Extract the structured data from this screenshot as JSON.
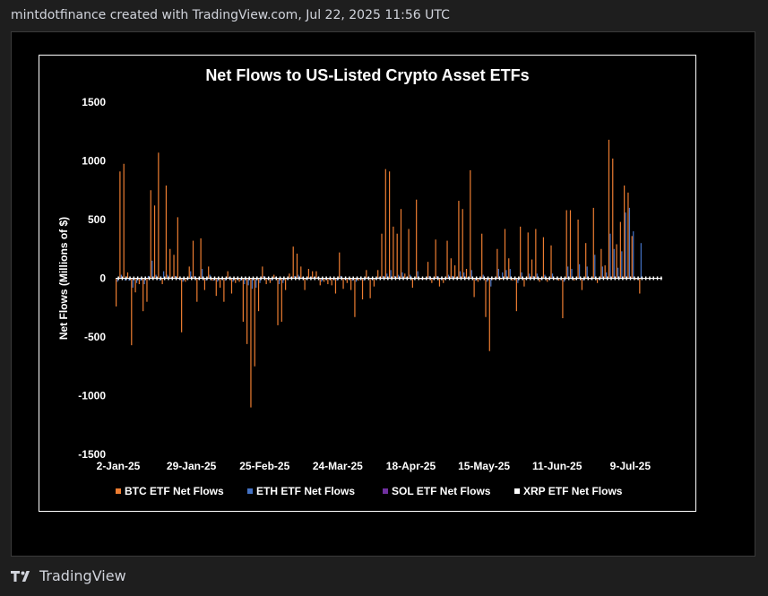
{
  "header": {
    "attribution": "mintdotfinance created with TradingView.com, Jul 22, 2025 11:56 UTC"
  },
  "footer": {
    "brand": "TradingView",
    "logo_icon": "tradingview-logo-icon"
  },
  "colors": {
    "btc": "#ed7d31",
    "eth": "#4472c4",
    "sol": "#7030a0",
    "xrp": "#ffffff",
    "background": "#000000",
    "text": "#ffffff"
  },
  "chart_data": {
    "type": "bar",
    "title": "Net Flows to US-Listed Crypto Asset ETFs",
    "xlabel": "",
    "ylabel": "Net Flows (Millions of $)",
    "ylim": [
      -1500,
      1500
    ],
    "yticks": [
      1500,
      1000,
      500,
      0,
      -500,
      -1000,
      -1500
    ],
    "ytick_labels": [
      "1500",
      "1000",
      "500",
      "0",
      "-500",
      "-1000",
      "-1500"
    ],
    "xtick_labels": [
      "2-Jan-25",
      "29-Jan-25",
      "25-Feb-25",
      "24-Mar-25",
      "18-Apr-25",
      "15-May-25",
      "11-Jun-25",
      "9-Jul-25"
    ],
    "xtick_days": [
      0,
      19,
      38,
      57,
      76,
      95,
      114,
      133
    ],
    "legend_position": "bottom",
    "legend": [
      "BTC ETF Net Flows",
      "ETH ETF Net Flows",
      "SOL ETF Net Flows",
      "XRP ETF Net Flows"
    ],
    "days": 142,
    "series": [
      {
        "name": "BTC ETF Net Flows",
        "color": "#ed7d31",
        "values": [
          -240,
          910,
          975,
          50,
          -570,
          -120,
          -50,
          -280,
          -200,
          750,
          620,
          1070,
          -50,
          790,
          250,
          200,
          520,
          -460,
          -30,
          100,
          320,
          -200,
          340,
          -100,
          100,
          -20,
          -150,
          -80,
          -200,
          60,
          -130,
          -40,
          -30,
          -370,
          -560,
          -1100,
          -750,
          -280,
          100,
          -50,
          -40,
          30,
          -400,
          -370,
          -100,
          40,
          270,
          210,
          100,
          -100,
          80,
          60,
          60,
          -60,
          -30,
          -50,
          -60,
          -130,
          220,
          -90,
          -40,
          -100,
          -330,
          -20,
          -180,
          70,
          -170,
          -70,
          70,
          380,
          930,
          910,
          440,
          380,
          590,
          40,
          420,
          -80,
          670,
          -10,
          -10,
          140,
          -40,
          330,
          -70,
          -40,
          320,
          170,
          110,
          660,
          590,
          80,
          920,
          -160,
          -30,
          380,
          -330,
          -620,
          -10,
          250,
          -10,
          420,
          170,
          -20,
          -280,
          440,
          -70,
          390,
          160,
          420,
          -30,
          350,
          -30,
          280,
          -10,
          -20,
          -340,
          580,
          580,
          -20,
          500,
          -100,
          300,
          -10,
          600,
          -40,
          250,
          110,
          1180,
          1020,
          290,
          480,
          790,
          730,
          360,
          -10,
          -130
        ]
      },
      {
        "name": "ETH ETF Net Flows",
        "color": "#4472c4",
        "values": [
          -30,
          30,
          -20,
          -20,
          -80,
          -40,
          -20,
          -50,
          20,
          150,
          30,
          -20,
          60,
          30,
          10,
          20,
          -10,
          -30,
          -10,
          60,
          20,
          -10,
          80,
          -20,
          30,
          -20,
          -30,
          -10,
          -20,
          10,
          -30,
          -10,
          -20,
          -50,
          -60,
          -90,
          -80,
          -40,
          20,
          -10,
          -20,
          10,
          -50,
          -40,
          -10,
          10,
          20,
          30,
          10,
          -10,
          10,
          10,
          10,
          -30,
          -10,
          -10,
          -10,
          -20,
          20,
          -10,
          -10,
          -20,
          -30,
          -10,
          -20,
          10,
          -10,
          -10,
          10,
          20,
          40,
          70,
          20,
          30,
          50,
          10,
          30,
          -10,
          60,
          -10,
          -10,
          20,
          -10,
          20,
          -10,
          -10,
          30,
          20,
          10,
          60,
          50,
          10,
          70,
          -20,
          -10,
          30,
          -30,
          -70,
          -10,
          80,
          50,
          70,
          80,
          -10,
          -40,
          50,
          -10,
          40,
          20,
          40,
          -10,
          30,
          -10,
          40,
          -10,
          -10,
          -30,
          100,
          80,
          -10,
          120,
          -20,
          100,
          -10,
          200,
          -10,
          100,
          50,
          380,
          250,
          90,
          230,
          560,
          600,
          400,
          -10,
          300
        ]
      },
      {
        "name": "SOL ETF Net Flows",
        "color": "#7030a0",
        "values": []
      },
      {
        "name": "XRP ETF Net Flows",
        "color": "#ffffff",
        "values": [
          5,
          5,
          5,
          5,
          5,
          5,
          5,
          5,
          5,
          5,
          5,
          5,
          5,
          5,
          5,
          5,
          5,
          5,
          5,
          5,
          5,
          5,
          5,
          5,
          5,
          5,
          5,
          5,
          5,
          5,
          5,
          5,
          5,
          5,
          5,
          5,
          5,
          5,
          5,
          5,
          5,
          5,
          5,
          5,
          5,
          5,
          5,
          5,
          5,
          5,
          5,
          5,
          5,
          5,
          5,
          5,
          5,
          5,
          5,
          5,
          5,
          5,
          5,
          5,
          5,
          5,
          5,
          5,
          5,
          5,
          5,
          5,
          5,
          5,
          5,
          5,
          5,
          5,
          5,
          5,
          5,
          5,
          5,
          5,
          5,
          5,
          5,
          5,
          5,
          5,
          5,
          5,
          5,
          5,
          5,
          5,
          5,
          5,
          5,
          5,
          5,
          5,
          5,
          5,
          5,
          5,
          5,
          5,
          5,
          5,
          5,
          5,
          5,
          5,
          5,
          5,
          5,
          5,
          5,
          5,
          5,
          5,
          5,
          5,
          5,
          5,
          5,
          5,
          5,
          5,
          5,
          5,
          5,
          5,
          5,
          5,
          5,
          5,
          5,
          5,
          5,
          5
        ]
      }
    ]
  }
}
